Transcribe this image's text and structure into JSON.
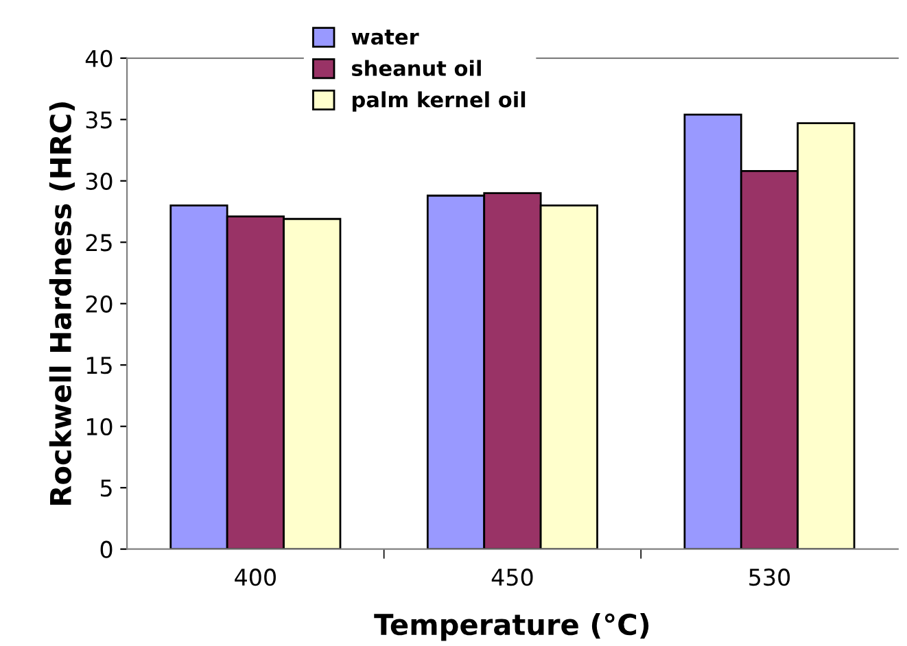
{
  "chart_data": {
    "type": "bar",
    "xlabel": "Temperature (°C)",
    "ylabel": "Rockwell Hardness (HRC)",
    "categories": [
      "400",
      "450",
      "530"
    ],
    "series": [
      {
        "name": "water",
        "color": "#9999ff",
        "values": [
          28.0,
          28.8,
          35.4
        ]
      },
      {
        "name": "sheanut oil",
        "color": "#993366",
        "values": [
          27.1,
          29.0,
          30.8
        ]
      },
      {
        "name": "palm kernel oil",
        "color": "#ffffcc",
        "values": [
          26.9,
          28.0,
          34.7
        ]
      }
    ],
    "ylim": [
      0,
      40
    ],
    "yticks": [
      0,
      5,
      10,
      15,
      20,
      25,
      30,
      35,
      40
    ],
    "grid": false,
    "legend": "top"
  }
}
